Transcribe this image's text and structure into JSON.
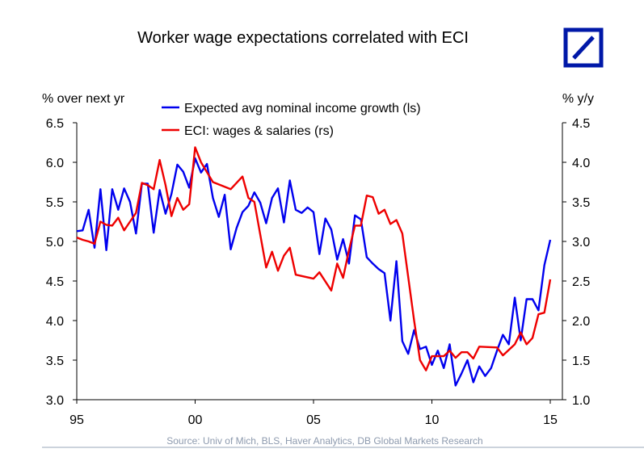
{
  "chart_data": {
    "type": "line",
    "title": "Worker wage expectations correlated with ECI",
    "ylabel_left": "% over next yr",
    "ylabel_right": "% y/y",
    "source": "Source: Univ of Mich, BLS, Haver Analytics, DB Global Markets Research",
    "xlim": [
      1995,
      2015
    ],
    "x_ticks": [
      {
        "v": 1995,
        "label": "95"
      },
      {
        "v": 2000,
        "label": "00"
      },
      {
        "v": 2005,
        "label": "05"
      },
      {
        "v": 2010,
        "label": "10"
      },
      {
        "v": 2015,
        "label": "15"
      }
    ],
    "ylim_left": [
      3.0,
      6.5
    ],
    "ylim_right": [
      1.0,
      4.5
    ],
    "y_ticks_left": [
      "3.0",
      "3.5",
      "4.0",
      "4.5",
      "5.0",
      "5.5",
      "6.0",
      "6.5"
    ],
    "y_ticks_right": [
      "1.0",
      "1.5",
      "2.0",
      "2.5",
      "3.0",
      "3.5",
      "4.0",
      "4.5"
    ],
    "legend_position": "top-center",
    "series": [
      {
        "name": "Expected avg nominal income growth (ls)",
        "axis": "left",
        "color": "#0000ee",
        "x": [
          1995,
          1995.25,
          1995.5,
          1995.75,
          1996,
          1996.25,
          1996.5,
          1996.75,
          1997,
          1997.25,
          1997.5,
          1997.75,
          1998,
          1998.25,
          1998.5,
          1998.75,
          1999,
          1999.25,
          1999.5,
          1999.75,
          2000,
          2000.25,
          2000.5,
          2000.75,
          2001,
          2001.25,
          2001.5,
          2001.75,
          2002,
          2002.25,
          2002.5,
          2002.75,
          2003,
          2003.25,
          2003.5,
          2003.75,
          2004,
          2004.25,
          2004.5,
          2004.75,
          2005,
          2005.25,
          2005.5,
          2005.75,
          2006,
          2006.25,
          2006.5,
          2006.75,
          2007,
          2007.25,
          2007.5,
          2007.75,
          2008,
          2008.25,
          2008.5,
          2008.75,
          2009,
          2009.25,
          2009.5,
          2009.75,
          2010,
          2010.25,
          2010.5,
          2010.75,
          2011,
          2011.25,
          2011.5,
          2011.75,
          2012,
          2012.25,
          2012.5,
          2012.75,
          2013,
          2013.25,
          2013.5,
          2013.75,
          2014,
          2014.25,
          2014.5,
          2014.75,
          2015
        ],
        "values": [
          5.13,
          5.14,
          5.4,
          4.92,
          5.66,
          4.89,
          5.66,
          5.4,
          5.67,
          5.5,
          5.1,
          5.73,
          5.73,
          5.11,
          5.65,
          5.35,
          5.6,
          5.97,
          5.88,
          5.68,
          6.05,
          5.87,
          5.98,
          5.55,
          5.31,
          5.59,
          4.9,
          5.17,
          5.37,
          5.45,
          5.62,
          5.49,
          5.23,
          5.55,
          5.67,
          5.24,
          5.77,
          5.4,
          5.36,
          5.43,
          5.37,
          4.84,
          5.29,
          5.15,
          4.77,
          5.03,
          4.72,
          5.33,
          5.28,
          4.8,
          4.72,
          4.65,
          4.6,
          4.0,
          4.75,
          3.74,
          3.58,
          3.88,
          3.64,
          3.67,
          3.44,
          3.62,
          3.4,
          3.7,
          3.18,
          3.33,
          3.5,
          3.22,
          3.42,
          3.3,
          3.4,
          3.62,
          3.82,
          3.7,
          4.29,
          3.75,
          4.27,
          4.27,
          4.13,
          4.7,
          5.02
        ]
      },
      {
        "name": "ECI: wages & salaries (rs)",
        "axis": "right",
        "color": "#ee0000",
        "x": [
          1995,
          1995.25,
          1995.5,
          1995.75,
          1996,
          1996.25,
          1996.5,
          1996.75,
          1997,
          1997.25,
          1997.5,
          1997.75,
          1998,
          1998.25,
          1998.5,
          1998.75,
          1999,
          1999.25,
          1999.5,
          1999.75,
          2000,
          2000.25,
          2000.75,
          2001.5,
          2002,
          2002.25,
          2002.5,
          2003,
          2003.25,
          2003.5,
          2003.75,
          2004,
          2004.25,
          2005,
          2005.25,
          2005.75,
          2006,
          2006.25,
          2006.5,
          2006.75,
          2007,
          2007.25,
          2007.5,
          2007.75,
          2008,
          2008.25,
          2008.5,
          2008.75,
          2009.25,
          2009.5,
          2009.75,
          2010,
          2010.5,
          2010.75,
          2011,
          2011.25,
          2011.5,
          2011.75,
          2012,
          2012.75,
          2013,
          2013.5,
          2013.75,
          2014,
          2014.25,
          2014.5,
          2014.75,
          2015
        ],
        "values": [
          3.05,
          3.02,
          3.0,
          2.97,
          3.25,
          3.21,
          3.2,
          3.3,
          3.14,
          3.25,
          3.36,
          3.74,
          3.71,
          3.66,
          4.03,
          3.71,
          3.32,
          3.55,
          3.4,
          3.47,
          4.19,
          4.0,
          3.75,
          3.66,
          3.82,
          3.55,
          3.5,
          2.67,
          2.87,
          2.63,
          2.82,
          2.92,
          2.58,
          2.53,
          2.61,
          2.38,
          2.72,
          2.54,
          2.89,
          3.2,
          3.2,
          3.58,
          3.56,
          3.35,
          3.4,
          3.22,
          3.27,
          3.1,
          2.0,
          1.5,
          1.37,
          1.55,
          1.55,
          1.62,
          1.53,
          1.6,
          1.6,
          1.52,
          1.67,
          1.66,
          1.56,
          1.7,
          1.85,
          1.7,
          1.78,
          2.08,
          2.1,
          2.52
        ]
      }
    ]
  }
}
